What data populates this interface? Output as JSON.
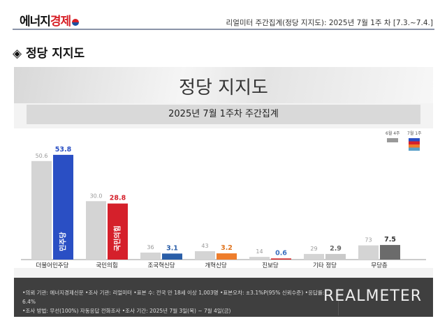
{
  "header": {
    "logo_a": "에너지",
    "logo_b": "경제",
    "title": "리얼미터 주간집계(정당  지지도): 2025년 7월 1주 차 [7.3.~7.4.]"
  },
  "section_title": "◈ 정당 지지도",
  "chart_data": {
    "type": "bar",
    "title": "정당 지지도",
    "subtitle": "2025년 7월 1주차 주간집계",
    "categories": [
      "더불어민주당",
      "국민의힘",
      "조국혁신당",
      "개혁신당",
      "진보당",
      "기타 정당",
      "무당층"
    ],
    "series": [
      {
        "name": "6월 4주",
        "values": [
          50.6,
          30.0,
          3.6,
          4.3,
          1.4,
          2.9,
          7.3
        ],
        "color": "#d4d4d4"
      },
      {
        "name": "7월 1주",
        "values": [
          53.8,
          28.8,
          3.1,
          3.2,
          0.6,
          2.9,
          7.5
        ],
        "colors": [
          "#2a4fc4",
          "#d5202b",
          "#2a5ea8",
          "#ee7d2c",
          "#d52b2e",
          "#c9c9c9",
          "#6b6b6b"
        ],
        "label_colors": [
          "#2a4fc4",
          "#d5202b",
          "#2a5ea8",
          "#e0741e",
          "#3a6fc0",
          "#666666",
          "#333333"
        ]
      }
    ],
    "bar_texts": [
      "민주당",
      "국민의힘"
    ],
    "ylim": [
      0,
      56
    ]
  },
  "footer": {
    "line1": "•의뢰 기관: 에너지경제신문  •조사 기관: 리얼미터 •표본 수: 전국 만 18세 이상 1,003명 •표본오차: ±3.1%P(95% 신뢰수준) •응답률: 6.4%",
    "line2": "•조사 방법: 무선(100%) 자동응답 전화조사 •조사 기간: 2025년 7월 3일(목) ~ 7월 4일(금)",
    "brand": "REALMETER"
  }
}
